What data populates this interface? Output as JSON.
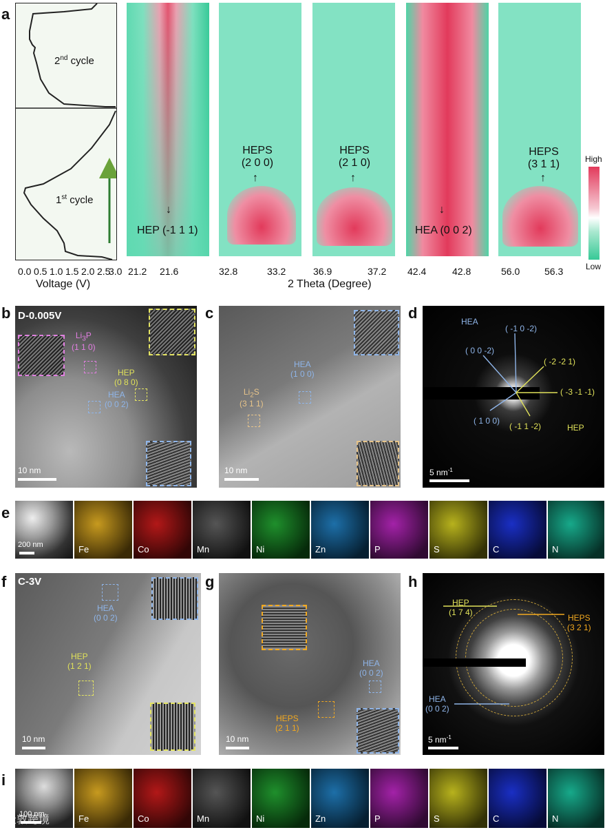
{
  "panel_a": {
    "label": "a",
    "cycle2": "2",
    "cycle2_sup": "nd",
    "cycle2_rest": " cycle",
    "cycle1": "1",
    "cycle1_sup": "st",
    "cycle1_rest": " cycle",
    "voltage_axis_title": "Voltage (V)",
    "voltage_ticks": [
      "0.0",
      "0.5",
      "1.0",
      "1.5",
      "2.0",
      "2.5",
      "3.0"
    ],
    "theta_axis_title": "2 Theta (Degree)",
    "colorbar_high": "High",
    "colorbar_low": "Low",
    "maps": [
      {
        "ticks": [
          "21.2",
          "21.6"
        ],
        "annotation": "HEP (-1 1 1)"
      },
      {
        "ticks": [
          "32.8",
          "33.2"
        ],
        "annotation_line1": "HEPS",
        "annotation_line2": "(2 0 0)"
      },
      {
        "ticks": [
          "36.9",
          "37.2"
        ],
        "annotation_line1": "HEPS",
        "annotation_line2": "(2 1 0)"
      },
      {
        "ticks": [
          "42.4",
          "42.8"
        ],
        "annotation": "HEA (0 0 2)"
      },
      {
        "ticks": [
          "56.0",
          "56.3"
        ],
        "annotation_line1": "HEPS",
        "annotation_line2": "(3 1 1)"
      }
    ]
  },
  "panel_b": {
    "label": "b",
    "condition": "D-0.005V",
    "li3p_a": "Li",
    "li3p_sub": "3",
    "li3p_b": "P",
    "li3p_hkl": "(1 1 0)",
    "hep": "HEP",
    "hep_hkl": "(0 8 0)",
    "hea": "HEA",
    "hea_hkl": "(0 0 2)",
    "scale": "10 nm"
  },
  "panel_c": {
    "label": "c",
    "hea": "HEA",
    "hea_hkl": "(1 0 0)",
    "li2s_a": "Li",
    "li2s_sub": "2",
    "li2s_b": "S",
    "li2s_hkl": "(3 1 1)",
    "scale": "10 nm"
  },
  "panel_d": {
    "label": "d",
    "hea": "HEA",
    "r1": "( -1 0 -2)",
    "r2": "( 0 0 -2)",
    "r3": "( -2 -2 1)",
    "r4": "( -3 -1 -1)",
    "r5": "( 1 0 0)",
    "r6": "( -1 1 -2)",
    "hep": "HEP",
    "scale": "5 nm",
    "scale_sup": "-1"
  },
  "panel_e": {
    "label": "e",
    "scale": "200 nm",
    "elements": [
      "Fe",
      "Co",
      "Mn",
      "Ni",
      "Zn",
      "P",
      "S",
      "C",
      "N"
    ],
    "colors": [
      "#c79a1f",
      "#b21818",
      "#8a8a8a",
      "#1f8f2c",
      "#1d6fa8",
      "#a322a8",
      "#b7b21d",
      "#1a2fc4",
      "#17a98a"
    ]
  },
  "panel_f": {
    "label": "f",
    "condition": "C-3V",
    "hea": "HEA",
    "hea_hkl": "(0 0 2)",
    "hep": "HEP",
    "hep_hkl": "(1 2 1)",
    "scale": "10 nm"
  },
  "panel_g": {
    "label": "g",
    "hea": "HEA",
    "hea_hkl": "(0 0 2)",
    "heps": "HEPS",
    "heps_hkl": "(2 1 1)",
    "scale": "10 nm"
  },
  "panel_h": {
    "label": "h",
    "hep": "HEP",
    "hep_hkl": "(1 7 4)",
    "heps": "HEPS",
    "heps_hkl": "(3 2 1)",
    "hea": "HEA",
    "hea_hkl": "(0 0 2)",
    "scale": "5 nm",
    "scale_sup": "-1"
  },
  "panel_i": {
    "label": "i",
    "scale": "100 nm",
    "elements": [
      "Fe",
      "Co",
      "Mn",
      "Ni",
      "Zn",
      "P",
      "S",
      "C",
      "N"
    ],
    "watermark": "众敦跨境"
  }
}
